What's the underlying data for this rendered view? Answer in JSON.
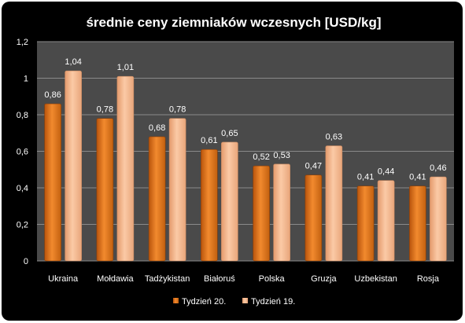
{
  "chart_data": {
    "type": "bar",
    "title": "średnie ceny ziemniaków wczesnych [USD/kg]",
    "xlabel": "",
    "ylabel": "",
    "ylim": [
      0,
      1.2
    ],
    "yticks": [
      "0",
      "0,2",
      "0,4",
      "0,6",
      "0,8",
      "1",
      "1,2"
    ],
    "ytick_values": [
      0,
      0.2,
      0.4,
      0.6,
      0.8,
      1.0,
      1.2
    ],
    "grid": true,
    "legend_position": "bottom",
    "categories": [
      "Ukraina",
      "Mołdawia",
      "Tadżykistan",
      "Białoruś",
      "Polska",
      "Gruzja",
      "Uzbekistan",
      "Rosja"
    ],
    "series": [
      {
        "name": "Tydzień 20.",
        "color": "#e8761f",
        "values": [
          0.86,
          0.78,
          0.68,
          0.61,
          0.52,
          0.47,
          0.41,
          0.41
        ],
        "labels": [
          "0,86",
          "0,78",
          "0,68",
          "0,61",
          "0,52",
          "0,47",
          "0,41",
          "0,41"
        ]
      },
      {
        "name": "Tydzień 19.",
        "color": "#f6b48a",
        "values": [
          1.04,
          1.01,
          0.78,
          0.65,
          0.53,
          0.63,
          0.44,
          0.46
        ],
        "labels": [
          "1,04",
          "1,01",
          "0,78",
          "0,65",
          "0,53",
          "0,63",
          "0,44",
          "0,46"
        ]
      }
    ]
  }
}
